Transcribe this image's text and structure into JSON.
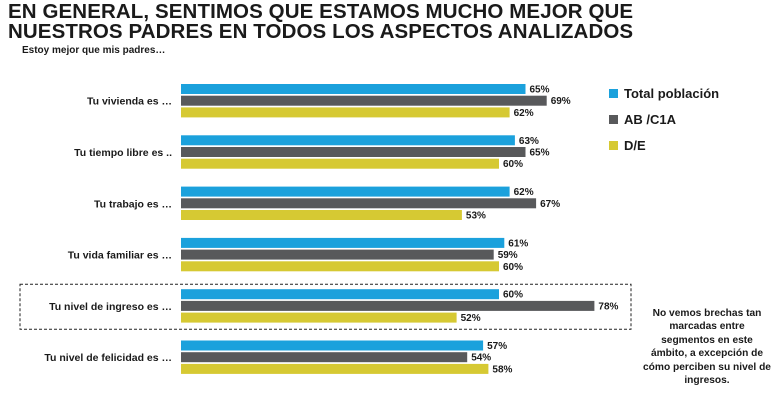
{
  "title_line1": "EN GENERAL, SENTIMOS QUE ESTAMOS MUCHO MEJOR QUE",
  "title_line2": "NUESTROS PADRES EN TODOS LOS ASPECTOS ANALIZADOS",
  "subtitle": "Estoy mejor que mis padres…",
  "note": "No vemos brechas tan marcadas entre segmentos en este ámbito, a excepción de cómo perciben su nivel de ingresos.",
  "colors": {
    "total": "#1ba1dc",
    "ab": "#58595b",
    "de": "#d6c933"
  },
  "chart_data": {
    "type": "bar",
    "orientation": "horizontal",
    "title": "EN GENERAL, SENTIMOS QUE ESTAMOS MUCHO MEJOR QUE NUESTROS PADRES EN TODOS LOS ASPECTOS ANALIZADOS",
    "subtitle": "Estoy mejor que mis padres…",
    "unit": "%",
    "xlim": [
      0,
      100
    ],
    "grid": false,
    "legend_position": "right",
    "highlighted_category": "Tu nivel de ingreso es …",
    "categories": [
      "Tu vivienda es …",
      "Tu tiempo libre es ..",
      "Tu trabajo es …",
      "Tu vida familiar es …",
      "Tu nivel de ingreso es …",
      "Tu nivel de felicidad es …"
    ],
    "series": [
      {
        "name": "Total población",
        "values": [
          65,
          63,
          62,
          61,
          60,
          57
        ]
      },
      {
        "name": "AB /C1A",
        "values": [
          69,
          65,
          67,
          59,
          78,
          54
        ]
      },
      {
        "name": "D/E",
        "values": [
          62,
          60,
          53,
          60,
          52,
          58
        ]
      }
    ]
  }
}
